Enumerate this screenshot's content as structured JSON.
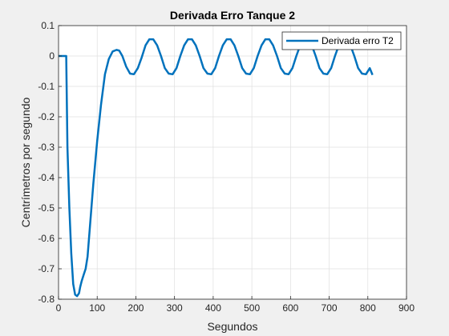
{
  "chart_data": {
    "type": "line",
    "title": "Derivada Erro Tanque 2",
    "xlabel": "Segundos",
    "ylabel": "Centrímetros por segundo",
    "xlim": [
      0,
      900
    ],
    "ylim": [
      -0.8,
      0.1
    ],
    "xticks": [
      0,
      100,
      200,
      300,
      400,
      500,
      600,
      700,
      800,
      900
    ],
    "yticks": [
      0.1,
      0,
      -0.1,
      -0.2,
      -0.3,
      -0.4,
      -0.5,
      -0.6,
      -0.7,
      -0.8
    ],
    "grid": true,
    "legend_position": "top-right",
    "line_color": "#0072BD",
    "series": [
      {
        "name": "Derivada erro T2",
        "x": [
          0,
          10,
          20,
          23,
          28,
          33,
          38,
          43,
          48,
          53,
          56,
          60,
          65,
          70,
          75,
          80,
          85,
          90,
          95,
          100,
          110,
          120,
          130,
          140,
          150,
          157,
          165,
          175,
          185,
          195,
          205,
          215,
          225,
          235,
          245,
          255,
          265,
          275,
          285,
          295,
          305,
          315,
          325,
          335,
          345,
          355,
          365,
          375,
          385,
          395,
          405,
          415,
          425,
          435,
          445,
          455,
          465,
          475,
          485,
          495,
          505,
          515,
          525,
          535,
          545,
          555,
          565,
          575,
          585,
          595,
          605,
          615,
          625,
          635,
          645,
          655,
          665,
          675,
          685,
          695,
          705,
          715,
          725,
          735,
          745,
          755,
          765,
          775,
          785,
          795,
          805,
          812
        ],
        "y": [
          0,
          0,
          0,
          -0.3,
          -0.5,
          -0.65,
          -0.75,
          -0.785,
          -0.79,
          -0.78,
          -0.76,
          -0.74,
          -0.72,
          -0.7,
          -0.66,
          -0.58,
          -0.5,
          -0.42,
          -0.35,
          -0.28,
          -0.16,
          -0.06,
          -0.01,
          0.015,
          0.02,
          0.018,
          0.0,
          -0.035,
          -0.058,
          -0.06,
          -0.04,
          -0.005,
          0.035,
          0.055,
          0.055,
          0.035,
          0.0,
          -0.04,
          -0.058,
          -0.06,
          -0.04,
          0.0,
          0.035,
          0.055,
          0.055,
          0.035,
          0.0,
          -0.04,
          -0.058,
          -0.06,
          -0.04,
          0.0,
          0.035,
          0.055,
          0.055,
          0.035,
          0.0,
          -0.04,
          -0.058,
          -0.06,
          -0.04,
          0.0,
          0.035,
          0.055,
          0.055,
          0.035,
          0.0,
          -0.04,
          -0.058,
          -0.06,
          -0.04,
          0.0,
          0.035,
          0.055,
          0.055,
          0.035,
          0.0,
          -0.04,
          -0.058,
          -0.06,
          -0.04,
          0.0,
          0.035,
          0.055,
          0.055,
          0.035,
          0.0,
          -0.04,
          -0.058,
          -0.06,
          -0.04,
          -0.062
        ]
      }
    ]
  }
}
